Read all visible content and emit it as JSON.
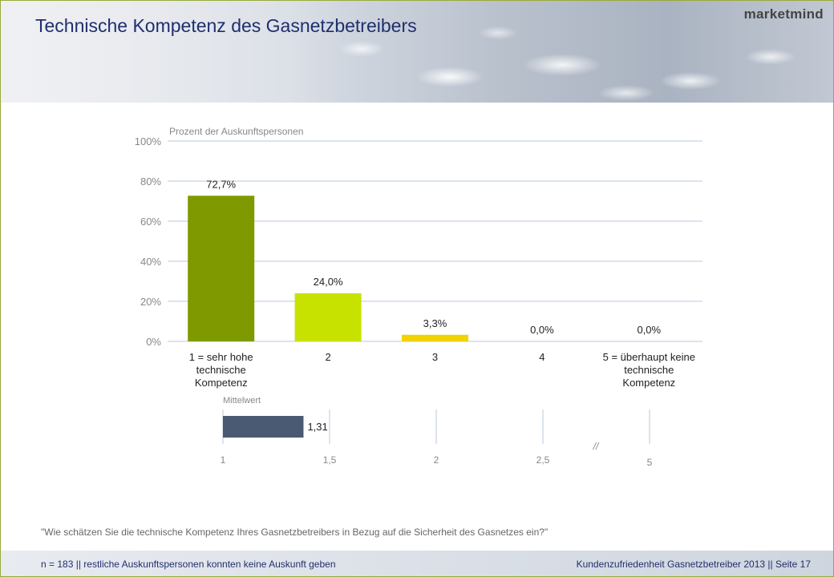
{
  "slide": {
    "title": "Technische Kompetenz des Gasnetzbetreibers",
    "logo": "marketmind",
    "question": "\"Wie schätzen Sie die technische Kompetenz Ihres Gasnetzbetreibers in Bezug auf die Sicherheit des Gasnetzes ein?\"",
    "footer_left": "n = 183 || restliche Auskunftspersonen konnten keine Auskunft geben",
    "footer_right": "Kundenzufriedenheit Gasnetzbetreiber 2013 || Seite 17"
  },
  "colors": {
    "title": "#1f2f6e",
    "grid": "#b8c8dc",
    "text": "#222222",
    "muted": "#888888",
    "mean_bar": "#4a5a72"
  },
  "chart_data": [
    {
      "type": "bar",
      "ylabel": "Prozent der Auskunftspersonen",
      "ylim": [
        0,
        100
      ],
      "yticks": [
        "0%",
        "20%",
        "40%",
        "60%",
        "80%",
        "100%"
      ],
      "categories": [
        [
          "1 = sehr hohe",
          "technische",
          "Kompetenz"
        ],
        [
          "2"
        ],
        [
          "3"
        ],
        [
          "4"
        ],
        [
          "5 = überhaupt keine",
          "technische",
          "Kompetenz"
        ]
      ],
      "values": [
        72.7,
        24.0,
        3.3,
        0.0,
        0.0
      ],
      "value_labels": [
        "72,7%",
        "24,0%",
        "3,3%",
        "0,0%",
        "0,0%"
      ],
      "colors": [
        "#7e9a00",
        "#c8e200",
        "#f2d200",
        "#c8c8c8",
        "#c8c8c8"
      ],
      "grid": true
    },
    {
      "type": "bar",
      "orientation": "horizontal",
      "label": "Mittelwert",
      "value": 1.31,
      "value_label": "1,31",
      "xticks": [
        "1",
        "1,5",
        "2",
        "2,5",
        "5"
      ],
      "axis_break": "//"
    }
  ]
}
